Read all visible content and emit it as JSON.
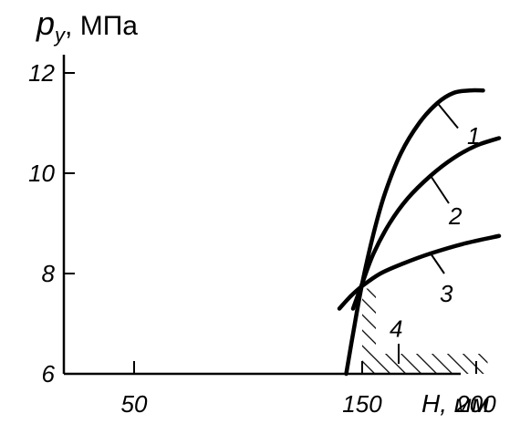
{
  "chart_data": {
    "type": "line",
    "title": "",
    "ylabel_main": "p",
    "ylabel_sub": "у",
    "ylabel_unit": ", МПа",
    "xlabel": "H, мм",
    "xlim": [
      100,
      220
    ],
    "ylim": [
      6,
      12
    ],
    "x_ticks": [
      {
        "value": 50,
        "label": "50"
      },
      {
        "value": 150,
        "label": "150"
      },
      {
        "value": 200,
        "label": "200"
      }
    ],
    "y_ticks": [
      {
        "value": 6,
        "label": "6"
      },
      {
        "value": 8,
        "label": "8"
      },
      {
        "value": 10,
        "label": "10"
      },
      {
        "value": 12,
        "label": "12"
      }
    ],
    "grid": false,
    "series": [
      {
        "label": "1",
        "x": [
          143,
          146,
          150,
          155,
          160,
          167,
          175,
          183,
          190,
          197,
          203
        ],
        "y": [
          6.0,
          6.8,
          7.8,
          8.8,
          9.6,
          10.4,
          11.0,
          11.4,
          11.6,
          11.65,
          11.65
        ]
      },
      {
        "label": "2",
        "x": [
          146,
          150,
          155,
          162,
          170,
          180,
          190,
          200,
          210
        ],
        "y": [
          7.3,
          7.8,
          8.4,
          9.0,
          9.5,
          9.95,
          10.3,
          10.55,
          10.7
        ]
      },
      {
        "label": "3",
        "x": [
          140,
          145,
          150,
          158,
          168,
          180,
          195,
          210
        ],
        "y": [
          7.3,
          7.55,
          7.75,
          8.0,
          8.2,
          8.4,
          8.6,
          8.75
        ]
      }
    ],
    "region": {
      "label": "4",
      "x": [
        150,
        156,
        156,
        205,
        205,
        150
      ],
      "y": [
        6.0,
        6.0,
        6.4,
        6.4,
        6.0,
        6.0
      ],
      "upper_x": [
        150,
        156
      ],
      "upper_y": [
        7.7,
        7.7
      ]
    }
  }
}
